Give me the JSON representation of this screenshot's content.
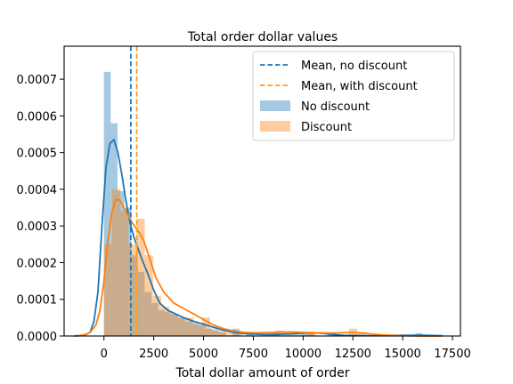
{
  "chart_data": {
    "type": "histogram",
    "title": "Total order dollar values",
    "xlabel": "Total dollar amount of order",
    "ylabel": "",
    "xlim": [
      -2000,
      17900
    ],
    "ylim": [
      0,
      0.00079
    ],
    "x_ticks": [
      0,
      2500,
      5000,
      7500,
      10000,
      12500,
      15000,
      17500
    ],
    "x_tick_labels": [
      "0",
      "2500",
      "5000",
      "7500",
      "10000",
      "12500",
      "15000",
      "17500"
    ],
    "y_ticks": [
      0,
      0.0001,
      0.0002,
      0.0003,
      0.0004,
      0.0005,
      0.0006,
      0.0007
    ],
    "y_tick_labels": [
      "0.0000",
      "0.0001",
      "0.0002",
      "0.0003",
      "0.0004",
      "0.0005",
      "0.0006",
      "0.0007"
    ],
    "grid": false,
    "legend_position": "top-right",
    "legend": [
      {
        "label": "Mean, no discount",
        "kind": "dashed-line",
        "color": "#1f77b4"
      },
      {
        "label": "Mean, with discount",
        "kind": "dashed-line",
        "color": "#ff9f0e"
      },
      {
        "label": "No discount",
        "kind": "patch",
        "color": "#1f77b4"
      },
      {
        "label": "Discount",
        "kind": "patch",
        "color": "#ff7f0e"
      }
    ],
    "series": [
      {
        "name": "No discount",
        "color": "#1f77b4",
        "bin_width": 340,
        "bins": [
          {
            "x0": 0,
            "y": 0.00072
          },
          {
            "x0": 340,
            "y": 0.00058
          },
          {
            "x0": 680,
            "y": 0.000395
          },
          {
            "x0": 1020,
            "y": 0.00035
          },
          {
            "x0": 1360,
            "y": 0.00022
          },
          {
            "x0": 1700,
            "y": 0.000175
          },
          {
            "x0": 2040,
            "y": 0.00012
          },
          {
            "x0": 2380,
            "y": 9e-05
          },
          {
            "x0": 2720,
            "y": 7e-05
          },
          {
            "x0": 3060,
            "y": 6.5e-05
          },
          {
            "x0": 3400,
            "y": 6e-05
          },
          {
            "x0": 3740,
            "y": 5e-05
          },
          {
            "x0": 4080,
            "y": 4e-05
          },
          {
            "x0": 4420,
            "y": 3.5e-05
          },
          {
            "x0": 4760,
            "y": 3e-05
          },
          {
            "x0": 5100,
            "y": 2e-05
          },
          {
            "x0": 5440,
            "y": 1.5e-05
          },
          {
            "x0": 5780,
            "y": 1e-05
          },
          {
            "x0": 6460,
            "y": 2e-05
          },
          {
            "x0": 7140,
            "y": 8e-06
          },
          {
            "x0": 8500,
            "y": 8e-06
          },
          {
            "x0": 9860,
            "y": 1e-05
          },
          {
            "x0": 10200,
            "y": 1e-05
          },
          {
            "x0": 11220,
            "y": 8e-06
          },
          {
            "x0": 15640,
            "y": 8e-06
          }
        ],
        "kde": {
          "x": [
            -1500,
            -1000,
            -700,
            -500,
            -300,
            -100,
            100,
            300,
            500,
            700,
            900,
            1100,
            1300,
            1500,
            1700,
            1900,
            2200,
            2500,
            2800,
            3200,
            3600,
            4000,
            4500,
            5000,
            5500,
            6000,
            6500,
            7000,
            7500,
            8000,
            8500,
            9000,
            9500,
            10000,
            10500,
            11000,
            11500,
            12000,
            13000,
            14000,
            15000,
            16000,
            17000
          ],
          "y": [
            0,
            2e-06,
            1e-05,
            4e-05,
            0.00012,
            0.0003,
            0.00046,
            0.000525,
            0.000535,
            0.0005,
            0.00044,
            0.00037,
            0.00031,
            0.00027,
            0.00024,
            0.00021,
            0.00017,
            0.000125,
            9e-05,
            7e-05,
            6e-05,
            5e-05,
            4e-05,
            3.2e-05,
            2.4e-05,
            1.6e-05,
            1e-05,
            7e-06,
            5e-06,
            4e-06,
            4e-06,
            5e-06,
            6e-06,
            8e-06,
            9e-06,
            7e-06,
            4e-06,
            2e-06,
            1e-06,
            1e-06,
            2e-06,
            2e-06,
            1e-06
          ]
        },
        "mean": 1350
      },
      {
        "name": "Discount",
        "color": "#ff7f0e",
        "bin_width": 410,
        "bins": [
          {
            "x0": 0,
            "y": 0.00025
          },
          {
            "x0": 410,
            "y": 0.0004
          },
          {
            "x0": 820,
            "y": 0.00034
          },
          {
            "x0": 1230,
            "y": 0.00025
          },
          {
            "x0": 1640,
            "y": 0.00032
          },
          {
            "x0": 2050,
            "y": 0.00022
          },
          {
            "x0": 2460,
            "y": 0.00011
          },
          {
            "x0": 2870,
            "y": 8e-05
          },
          {
            "x0": 3280,
            "y": 6e-05
          },
          {
            "x0": 3690,
            "y": 5e-05
          },
          {
            "x0": 4100,
            "y": 5e-05
          },
          {
            "x0": 4510,
            "y": 3e-05
          },
          {
            "x0": 4920,
            "y": 5e-05
          },
          {
            "x0": 5330,
            "y": 2e-05
          },
          {
            "x0": 5740,
            "y": 1.5e-05
          },
          {
            "x0": 6150,
            "y": 1e-05
          },
          {
            "x0": 6560,
            "y": 1e-05
          },
          {
            "x0": 8200,
            "y": 1e-05
          },
          {
            "x0": 8610,
            "y": 1.5e-05
          },
          {
            "x0": 9020,
            "y": 1e-05
          },
          {
            "x0": 9430,
            "y": 1e-05
          },
          {
            "x0": 10250,
            "y": 1e-05
          },
          {
            "x0": 12300,
            "y": 2e-05
          },
          {
            "x0": 12710,
            "y": 1e-05
          }
        ],
        "kde": {
          "x": [
            -1500,
            -1000,
            -700,
            -400,
            -200,
            0,
            200,
            400,
            600,
            800,
            1000,
            1200,
            1400,
            1600,
            1800,
            2000,
            2300,
            2600,
            3000,
            3500,
            4000,
            4500,
            5000,
            5500,
            6000,
            6500,
            7000,
            7500,
            8000,
            8500,
            9000,
            9500,
            10000,
            10500,
            11000,
            11500,
            12000,
            12500,
            13000,
            13500,
            14000,
            15000,
            16000,
            17000
          ],
          "y": [
            0,
            3e-06,
            1e-05,
            3e-05,
            7e-05,
            0.00015,
            0.00026,
            0.00034,
            0.000372,
            0.00037,
            0.00035,
            0.00033,
            0.00031,
            0.000295,
            0.00028,
            0.00026,
            0.00021,
            0.00016,
            0.00012,
            9e-05,
            7.5e-05,
            6e-05,
            4.5e-05,
            3e-05,
            2e-05,
            1.4e-05,
            1e-05,
            9e-06,
            9e-06,
            1e-05,
            1.1e-05,
            1.1e-05,
            1e-05,
            9e-06,
            8e-06,
            8e-06,
            9e-06,
            1e-05,
            8e-06,
            5e-06,
            3e-06,
            1e-06,
            0,
            0
          ]
        },
        "mean": 1650
      }
    ]
  }
}
